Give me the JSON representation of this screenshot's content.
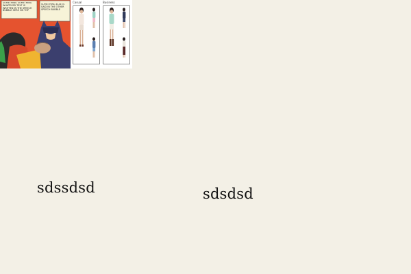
{
  "comic_image": {
    "bubble_left": "Something something whatever text is written in the speech bubble here on top",
    "bubble_right": "Something else is said in the other speech bubble"
  },
  "fashion_image": {
    "heading_left": "Casual",
    "heading_right": "Business"
  },
  "text_left": "sdssdsd",
  "text_right": "sdsdsd"
}
